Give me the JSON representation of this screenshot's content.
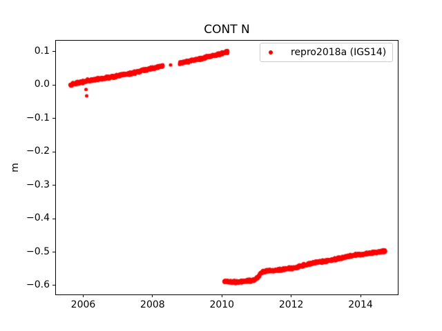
{
  "window": {
    "background": "#ffffff"
  },
  "chart_data": {
    "type": "scatter",
    "title": "CONT N",
    "xlabel": "",
    "ylabel": "m",
    "xlim": [
      2005.193,
      2015.075
    ],
    "ylim": [
      -0.627,
      0.1351
    ],
    "xticks": [
      2006,
      2008,
      2010,
      2012,
      2014
    ],
    "xtick_labels": [
      "2006",
      "2008",
      "2010",
      "2012",
      "2014"
    ],
    "yticks": [
      0.1,
      0.0,
      -0.1,
      -0.2,
      -0.3,
      -0.4,
      -0.5,
      -0.6
    ],
    "ytick_labels": [
      "0.1",
      "0.0",
      "−0.1",
      "−0.2",
      "−0.3",
      "−0.4",
      "−0.5",
      "−0.6"
    ],
    "grid": false,
    "legend_position": "upper right",
    "series": [
      {
        "name": "repro2018a (IGS14)",
        "color": "#ff0000",
        "marker": "dot",
        "marker_diameter_px": 5,
        "noise_halfwidth_m": 0.004,
        "segments": [
          {
            "desc": "pre-offset band (rises 0.00 to 0.06 m)",
            "anchors": [
              [
                2005.62,
                0.0
              ],
              [
                2005.72,
                0.004
              ],
              [
                2005.85,
                0.007
              ],
              [
                2006.0,
                0.01
              ],
              [
                2006.15,
                0.013
              ],
              [
                2006.3,
                0.016
              ],
              [
                2006.45,
                0.018
              ],
              [
                2006.6,
                0.02
              ],
              [
                2006.75,
                0.023
              ],
              [
                2006.9,
                0.026
              ],
              [
                2007.05,
                0.03
              ],
              [
                2007.2,
                0.032
              ],
              [
                2007.35,
                0.034
              ],
              [
                2007.5,
                0.038
              ],
              [
                2007.65,
                0.042
              ],
              [
                2007.8,
                0.046
              ],
              [
                2007.95,
                0.049
              ],
              [
                2008.1,
                0.053
              ],
              [
                2008.3,
                0.058
              ]
            ]
          },
          {
            "desc": "isolated point in data gap",
            "anchors": [
              [
                2008.52,
                0.06
              ]
            ]
          },
          {
            "desc": "pre-offset band continues (0.065 to 0.100 m)",
            "anchors": [
              [
                2008.78,
                0.065
              ],
              [
                2008.95,
                0.069
              ],
              [
                2009.1,
                0.073
              ],
              [
                2009.3,
                0.077
              ],
              [
                2009.5,
                0.082
              ],
              [
                2009.7,
                0.087
              ],
              [
                2009.9,
                0.092
              ],
              [
                2010.05,
                0.096
              ],
              [
                2010.17,
                0.1
              ]
            ]
          },
          {
            "desc": "post-offset band (-0.59 recovering to -0.50 m, small step near 2011.1)",
            "anchors": [
              [
                2010.06,
                -0.588
              ],
              [
                2010.2,
                -0.589
              ],
              [
                2010.4,
                -0.59
              ],
              [
                2010.6,
                -0.588
              ],
              [
                2010.8,
                -0.586
              ],
              [
                2010.95,
                -0.583
              ],
              [
                2011.05,
                -0.575
              ],
              [
                2011.12,
                -0.563
              ],
              [
                2011.2,
                -0.558
              ],
              [
                2011.35,
                -0.556
              ],
              [
                2011.55,
                -0.555
              ],
              [
                2011.75,
                -0.552
              ],
              [
                2011.95,
                -0.549
              ],
              [
                2012.15,
                -0.546
              ],
              [
                2012.35,
                -0.54
              ],
              [
                2012.55,
                -0.534
              ],
              [
                2012.75,
                -0.53
              ],
              [
                2012.95,
                -0.528
              ],
              [
                2013.15,
                -0.524
              ],
              [
                2013.35,
                -0.52
              ],
              [
                2013.55,
                -0.515
              ],
              [
                2013.75,
                -0.511
              ],
              [
                2013.95,
                -0.508
              ],
              [
                2014.15,
                -0.505
              ],
              [
                2014.35,
                -0.502
              ],
              [
                2014.55,
                -0.499
              ],
              [
                2014.72,
                -0.497
              ]
            ]
          }
        ],
        "outliers": [
          [
            2006.08,
            -0.013
          ],
          [
            2006.1,
            -0.032
          ]
        ]
      }
    ]
  }
}
